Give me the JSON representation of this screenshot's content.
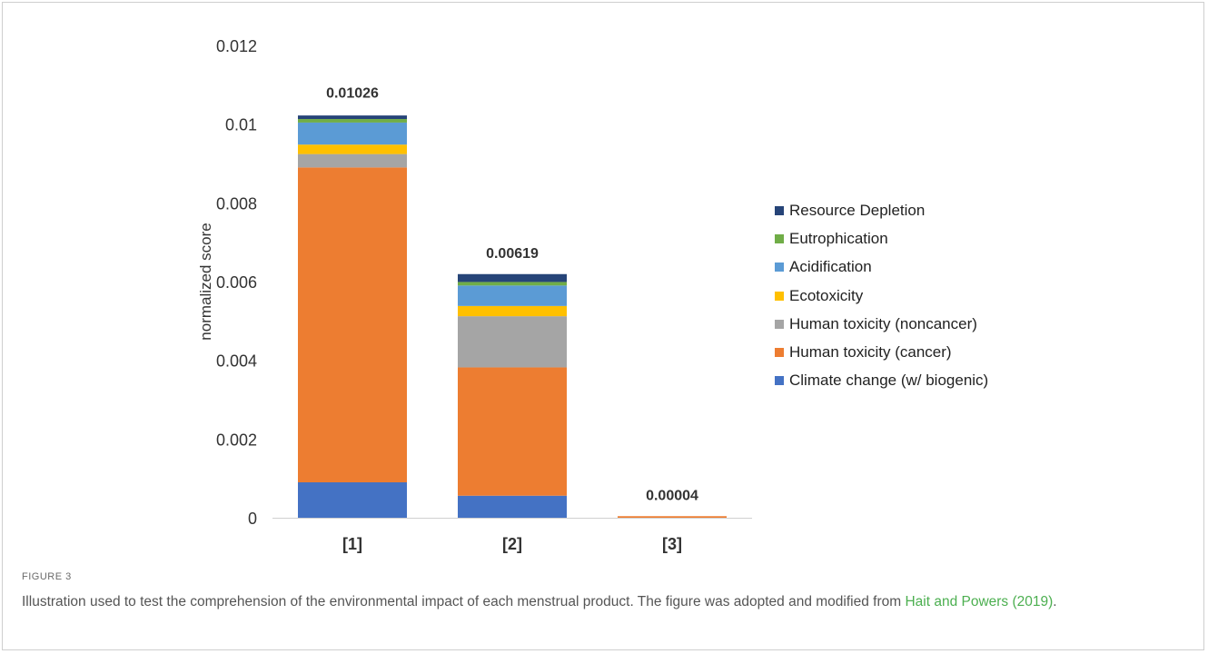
{
  "chart_data": {
    "type": "bar",
    "stacked": true,
    "categories": [
      "[1]",
      "[2]",
      "[3]"
    ],
    "ylabel": "normalized score",
    "ylim": [
      0,
      0.012
    ],
    "yticks": [
      "0",
      "0.002",
      "0.004",
      "0.006",
      "0.008",
      "0.01",
      "0.012"
    ],
    "totals": [
      0.01026,
      0.00619,
      4e-05
    ],
    "total_labels": [
      "0.01026",
      "0.00619",
      "0.00004"
    ],
    "series": [
      {
        "name": "Climate change (w/ biogenic)",
        "color": "#4472c4",
        "values": [
          0.0009,
          0.00056,
          0.0
        ]
      },
      {
        "name": "Human toxicity (cancer)",
        "color": "#ed7d31",
        "values": [
          0.008,
          0.00326,
          4e-05
        ]
      },
      {
        "name": "Human toxicity (noncancer)",
        "color": "#a5a5a5",
        "values": [
          0.00034,
          0.0013,
          0.0
        ]
      },
      {
        "name": "Ecotoxicity",
        "color": "#ffc000",
        "values": [
          0.00024,
          0.00026,
          0.0
        ]
      },
      {
        "name": "Acidification",
        "color": "#5b9bd5",
        "values": [
          0.00056,
          0.00052,
          0.0
        ]
      },
      {
        "name": "Eutrophication",
        "color": "#70ad47",
        "values": [
          9e-05,
          9e-05,
          0.0
        ]
      },
      {
        "name": "Resource Depletion",
        "color": "#264478",
        "values": [
          9e-05,
          0.0002,
          0.0
        ]
      }
    ],
    "legend_position": "right",
    "grid": false
  },
  "caption": {
    "figure_label": "FIGURE 3",
    "text": "Illustration used to test the comprehension of the environmental impact of each menstrual product. The figure was adopted and modified from ",
    "reference": "Hait and Powers (2019)",
    "end": "."
  }
}
